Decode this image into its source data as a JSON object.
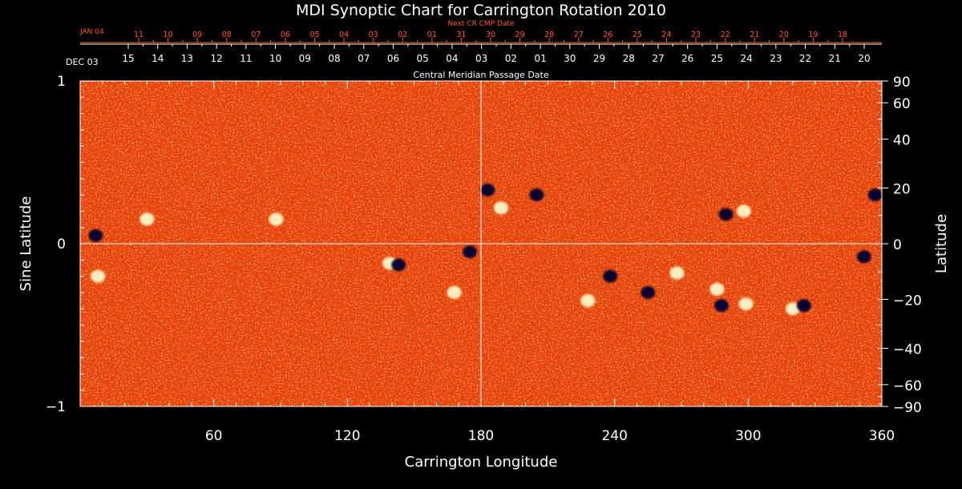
{
  "chart_data": {
    "type": "heatmap",
    "title": "MDI Synoptic Chart for Carrington Rotation 2010",
    "xlabel": "Carrington Longitude",
    "ylabel_left": "Sine Latitude",
    "ylabel_right": "Latitude",
    "xlim": [
      0,
      360
    ],
    "ylim": [
      -1,
      1
    ],
    "x_ticks": [
      "60",
      "120",
      "180",
      "240",
      "300",
      "360"
    ],
    "x_tick_values": [
      60,
      120,
      180,
      240,
      300,
      360
    ],
    "y_left_ticks": [
      {
        "v": 1,
        "label": "1"
      },
      {
        "v": 0,
        "label": "0"
      },
      {
        "v": -1,
        "label": "−1"
      }
    ],
    "y_right_ticks": [
      {
        "deg": 90,
        "label": "90"
      },
      {
        "deg": 60,
        "label": "60"
      },
      {
        "deg": 40,
        "label": "40"
      },
      {
        "deg": 20,
        "label": "20"
      },
      {
        "deg": 0,
        "label": "0"
      },
      {
        "deg": -20,
        "label": "−20"
      },
      {
        "deg": -40,
        "label": "−40"
      },
      {
        "deg": -60,
        "label": "−60"
      },
      {
        "deg": -90,
        "label": "−90"
      }
    ],
    "cmp_axis_label": "Central Meridian Passage Date",
    "cmp_start_label": "DEC 03",
    "cmp_dates": [
      "15",
      "14",
      "13",
      "12",
      "11",
      "10",
      "09",
      "08",
      "07",
      "06",
      "05",
      "04",
      "03",
      "02",
      "01",
      "30",
      "29",
      "28",
      "27",
      "26",
      "25",
      "24",
      "23",
      "22",
      "21",
      "20"
    ],
    "next_cr_axis_label": "Next CR CMP Date",
    "next_cr_start_label": "JAN 04",
    "next_cr_dates": [
      "11",
      "10",
      "09",
      "08",
      "07",
      "06",
      "05",
      "04",
      "03",
      "02",
      "01",
      "31",
      "30",
      "29",
      "28",
      "27",
      "26",
      "25",
      "24",
      "23",
      "22",
      "21",
      "20",
      "19",
      "18"
    ],
    "grid_lines": {
      "longitude": 180,
      "sine_latitude": 0
    },
    "active_regions": [
      {
        "lon": 7,
        "sinlat": 0.05,
        "polarity": "negative"
      },
      {
        "lon": 8,
        "sinlat": -0.2,
        "polarity": "positive"
      },
      {
        "lon": 30,
        "sinlat": 0.15,
        "polarity": "positive"
      },
      {
        "lon": 88,
        "sinlat": 0.15,
        "polarity": "positive"
      },
      {
        "lon": 139,
        "sinlat": -0.12,
        "polarity": "positive"
      },
      {
        "lon": 143,
        "sinlat": -0.13,
        "polarity": "negative"
      },
      {
        "lon": 168,
        "sinlat": -0.3,
        "polarity": "positive"
      },
      {
        "lon": 175,
        "sinlat": -0.05,
        "polarity": "negative"
      },
      {
        "lon": 183,
        "sinlat": 0.33,
        "polarity": "negative"
      },
      {
        "lon": 189,
        "sinlat": 0.22,
        "polarity": "positive"
      },
      {
        "lon": 205,
        "sinlat": 0.3,
        "polarity": "negative"
      },
      {
        "lon": 228,
        "sinlat": -0.35,
        "polarity": "positive"
      },
      {
        "lon": 238,
        "sinlat": -0.2,
        "polarity": "negative"
      },
      {
        "lon": 255,
        "sinlat": -0.3,
        "polarity": "negative"
      },
      {
        "lon": 268,
        "sinlat": -0.18,
        "polarity": "positive"
      },
      {
        "lon": 286,
        "sinlat": -0.28,
        "polarity": "positive"
      },
      {
        "lon": 288,
        "sinlat": -0.38,
        "polarity": "negative"
      },
      {
        "lon": 290,
        "sinlat": 0.18,
        "polarity": "negative"
      },
      {
        "lon": 298,
        "sinlat": 0.2,
        "polarity": "positive"
      },
      {
        "lon": 299,
        "sinlat": -0.37,
        "polarity": "positive"
      },
      {
        "lon": 320,
        "sinlat": -0.4,
        "polarity": "positive"
      },
      {
        "lon": 325,
        "sinlat": -0.38,
        "polarity": "negative"
      },
      {
        "lon": 352,
        "sinlat": -0.08,
        "polarity": "negative"
      },
      {
        "lon": 357,
        "sinlat": 0.3,
        "polarity": "negative"
      }
    ],
    "colors": {
      "background_field": "#ff5a10",
      "positive": "#fff6c8",
      "negative": "#000033",
      "frame": "#ffffff",
      "secondary_axis": "#ff5a1f"
    }
  }
}
